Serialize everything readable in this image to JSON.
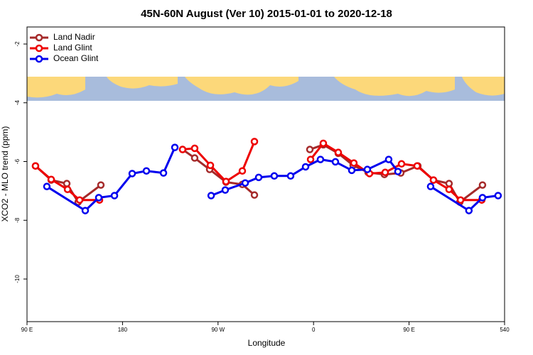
{
  "chart_data": {
    "type": "line",
    "title": "45N-60N August (Ver 10)   2015-01-01 to 2020-12-18",
    "xlabel": "Longitude",
    "ylabel": "XCO2 - MLO trend (ppm)",
    "xlim": [
      90,
      540
    ],
    "xticks": [
      {
        "value": 90,
        "label": "90 E"
      },
      180,
      {
        "value": 270,
        "label": "90 W"
      },
      {
        "value": 360,
        "label": "0"
      },
      {
        "value": 450,
        "label": "90 E"
      },
      540
    ],
    "ylim": [
      -11.45,
      -1.42
    ],
    "yticks": [
      -10,
      -8,
      -6,
      -4,
      -2
    ],
    "legend": "upper left",
    "series": [
      {
        "name": "Land Nadir",
        "color": "#a52a2a",
        "x": [
          98.0,
          112.8,
          127.5,
          138.2,
          159.6,
          null,
          236.6,
          248.0,
          262.1,
          277.5,
          292.9,
          304.3,
          null,
          356.5,
          369.2,
          383.3,
          397.3,
          411.4,
          426.8,
          442.2,
          458.3,
          473.0,
          487.7,
          497.8,
          519.2
        ],
        "values": [
          -6.15,
          -6.63,
          -6.75,
          -7.38,
          -6.8,
          null,
          -5.59,
          -5.88,
          -6.27,
          -6.7,
          -6.78,
          -7.14,
          null,
          -5.59,
          -5.43,
          -5.72,
          -6.13,
          -6.37,
          -6.44,
          -6.39,
          -6.15,
          -6.63,
          -6.75,
          -7.38,
          -6.8
        ]
      },
      {
        "name": "Land Glint",
        "color": "#ee0000",
        "x": [
          98.0,
          112.8,
          128.2,
          139.6,
          158.3,
          null,
          236.6,
          248.0,
          262.8,
          277.5,
          292.9,
          304.3,
          null,
          357.2,
          369.2,
          383.3,
          398.0,
          412.7,
          427.5,
          442.9,
          457.6,
          473.0,
          487.7,
          498.5,
          518.5
        ],
        "values": [
          -6.15,
          -6.61,
          -6.95,
          -7.31,
          -7.31,
          null,
          -5.59,
          -5.55,
          -6.13,
          -6.68,
          -6.32,
          -5.32,
          null,
          -5.93,
          -5.38,
          -5.69,
          -6.05,
          -6.41,
          -6.37,
          -6.08,
          -6.15,
          -6.63,
          -6.95,
          -7.31,
          -7.31
        ]
      },
      {
        "name": "Ocean Glint",
        "color": "#0000ee",
        "x": [
          108.7,
          144.9,
          157.6,
          172.4,
          189.1,
          202.5,
          218.6,
          229.3,
          null,
          263.5,
          276.8,
          295.6,
          308.3,
          323.0,
          338.4,
          352.5,
          366.5,
          380.6,
          396.0,
          410.7,
          430.8,
          439.5,
          null,
          470.3,
          506.4,
          519.2,
          533.9
        ],
        "values": [
          -6.85,
          -7.67,
          -7.23,
          -7.16,
          -6.41,
          -6.32,
          -6.39,
          -5.52,
          null,
          -7.16,
          -6.97,
          -6.73,
          -6.54,
          -6.49,
          -6.49,
          -6.18,
          -5.93,
          -6.01,
          -6.3,
          -6.27,
          -5.93,
          -6.34,
          null,
          -6.85,
          -7.67,
          -7.23,
          -7.16
        ]
      }
    ]
  }
}
